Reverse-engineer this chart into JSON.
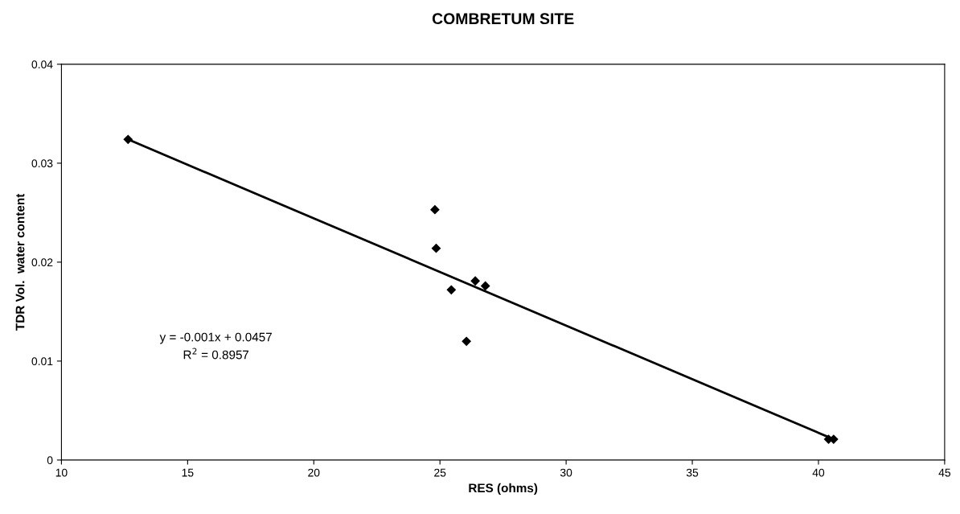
{
  "chart_data": {
    "type": "scatter",
    "title": "COMBRETUM SITE",
    "xlabel": "RES (ohms)",
    "ylabel": "TDR Vol.  water content",
    "xlim": [
      10,
      45
    ],
    "xticks": [
      10,
      15,
      20,
      25,
      30,
      35,
      40,
      45
    ],
    "ylim": [
      0,
      0.04
    ],
    "yticks": [
      0,
      0.01,
      0.02,
      0.03,
      0.04
    ],
    "grid": false,
    "series": [
      {
        "marker": "diamond",
        "color": "#000000",
        "x": [
          12.64,
          24.8,
          24.85,
          25.45,
          26.05,
          26.4,
          26.8,
          40.4,
          40.6
        ],
        "values": [
          0.0324,
          0.0253,
          0.0214,
          0.0172,
          0.012,
          0.0181,
          0.0176,
          0.0021,
          0.0021
        ]
      },
      {
        "type": "line",
        "marker": "none",
        "color": "#000000",
        "x": [
          12.64,
          40.6
        ],
        "values": [
          0.0324,
          0.0021
        ]
      }
    ],
    "annotations": [
      "y = -0.001x + 0.0457",
      "R$^{2}$ = 0.8957"
    ]
  }
}
